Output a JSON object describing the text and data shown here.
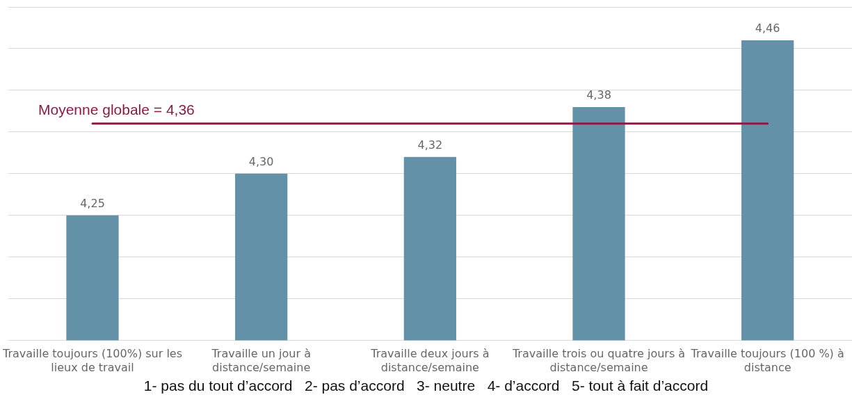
{
  "chart_data": {
    "type": "bar",
    "categories": [
      "Travaille toujours (100%) sur les lieux de travail",
      "Travaille un jour à distance/semaine",
      "Travaille deux jours à distance/semaine",
      "Travaille trois ou quatre jours à distance/semaine",
      "Travaille toujours (100 %) à distance"
    ],
    "values": [
      4.25,
      4.3,
      4.32,
      4.38,
      4.46
    ],
    "value_labels": [
      "4,25",
      "4,30",
      "4,32",
      "4,38",
      "4,46"
    ],
    "color": "#6391a8",
    "ylim": [
      4.1,
      4.5
    ],
    "yticks": [
      {
        "value": 4.1,
        "label": null
      },
      {
        "value": 4.15,
        "label": null
      },
      {
        "value": 4.2,
        "label": null
      },
      {
        "value": 4.25,
        "label": null
      },
      {
        "value": 4.3,
        "label": null
      },
      {
        "value": 4.35,
        "label": null
      },
      {
        "value": 4.4,
        "label": null
      },
      {
        "value": 4.45,
        "label": null
      },
      {
        "value": 4.5,
        "label": null
      }
    ],
    "tick_labels": "x",
    "grid": "y",
    "legend": false,
    "ref_lines": [
      {
        "axis": "y",
        "value": 4.36,
        "label": "Moyenne globale = 4,36",
        "color": "#8b1a44"
      }
    ],
    "annotations": [
      "1- pas du tout d’accord   2- pas d’accord   3- neutre   4- d’accord   5- tout à fait d’accord"
    ]
  }
}
